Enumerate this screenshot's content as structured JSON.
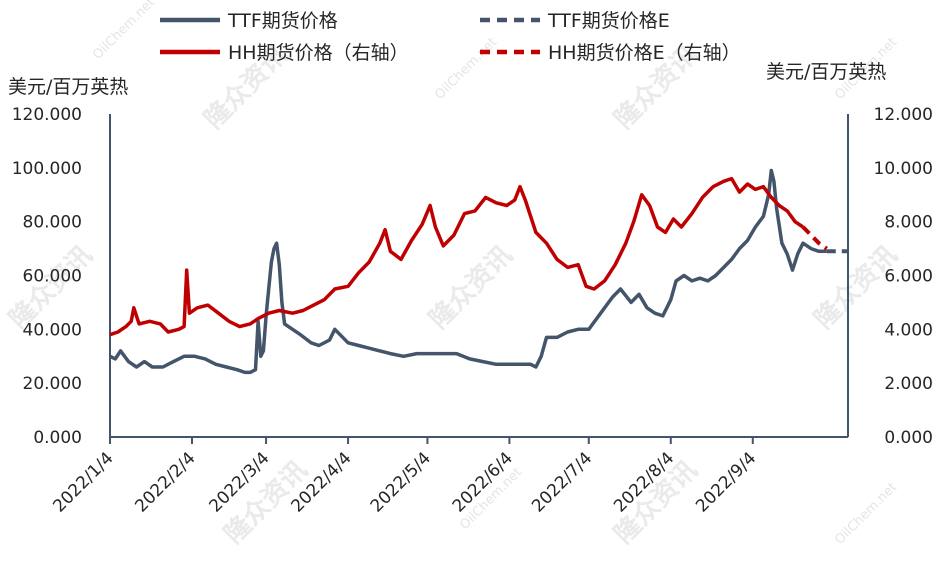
{
  "chart_data": {
    "type": "line",
    "legend": {
      "placement": "top",
      "entries": [
        {
          "label": "TTF期货价格",
          "color": "#44546a",
          "style": "solid"
        },
        {
          "label": "TTF期货价格E",
          "color": "#44546a",
          "style": "dashed"
        },
        {
          "label": "HH期货价格（右轴）",
          "color": "#c00000",
          "style": "solid"
        },
        {
          "label": "HH期货价格E（右轴）",
          "color": "#c00000",
          "style": "dashed"
        }
      ]
    },
    "left_axis": {
      "unit": "美元/百万英热",
      "ylim": [
        0,
        120
      ],
      "ticks": [
        "120.000",
        "100.000",
        "80.000",
        "60.000",
        "40.000",
        "20.000",
        "0.000"
      ]
    },
    "right_axis": {
      "unit": "美元/百万英热",
      "ylim": [
        0,
        12
      ],
      "ticks": [
        "12.000",
        "10.000",
        "8.000",
        "6.000",
        "4.000",
        "2.000",
        "0.000"
      ]
    },
    "x_ticks": [
      {
        "label": "2022/1/4",
        "date": "2022-01-04"
      },
      {
        "label": "2022/2/4",
        "date": "2022-02-04"
      },
      {
        "label": "2022/3/4",
        "date": "2022-03-04"
      },
      {
        "label": "2022/4/4",
        "date": "2022-04-04"
      },
      {
        "label": "2022/5/4",
        "date": "2022-05-04"
      },
      {
        "label": "2022/6/4",
        "date": "2022-06-04"
      },
      {
        "label": "2022/7/4",
        "date": "2022-07-04"
      },
      {
        "label": "2022/8/4",
        "date": "2022-08-04"
      },
      {
        "label": "2022/9/4",
        "date": "2022-09-04"
      }
    ],
    "grid": false,
    "series": [
      {
        "name": "TTF期货价格",
        "axis": "left",
        "color": "#44546a",
        "style": "solid",
        "points": [
          [
            "2022-01-04",
            30
          ],
          [
            "2022-01-06",
            29
          ],
          [
            "2022-01-08",
            32
          ],
          [
            "2022-01-11",
            28
          ],
          [
            "2022-01-14",
            26
          ],
          [
            "2022-01-17",
            28
          ],
          [
            "2022-01-20",
            26
          ],
          [
            "2022-01-24",
            26
          ],
          [
            "2022-01-28",
            28
          ],
          [
            "2022-02-01",
            30
          ],
          [
            "2022-02-05",
            30
          ],
          [
            "2022-02-09",
            29
          ],
          [
            "2022-02-13",
            27
          ],
          [
            "2022-02-17",
            26
          ],
          [
            "2022-02-21",
            25
          ],
          [
            "2022-02-24",
            24
          ],
          [
            "2022-02-26",
            24
          ],
          [
            "2022-02-28",
            25
          ],
          [
            "2022-03-01",
            43
          ],
          [
            "2022-03-02",
            30
          ],
          [
            "2022-03-03",
            32
          ],
          [
            "2022-03-04",
            45
          ],
          [
            "2022-03-05",
            55
          ],
          [
            "2022-03-06",
            65
          ],
          [
            "2022-03-07",
            70
          ],
          [
            "2022-03-08",
            72
          ],
          [
            "2022-03-09",
            64
          ],
          [
            "2022-03-10",
            50
          ],
          [
            "2022-03-11",
            42
          ],
          [
            "2022-03-14",
            40
          ],
          [
            "2022-03-17",
            38
          ],
          [
            "2022-03-21",
            35
          ],
          [
            "2022-03-24",
            34
          ],
          [
            "2022-03-28",
            36
          ],
          [
            "2022-03-30",
            40
          ],
          [
            "2022-04-01",
            38
          ],
          [
            "2022-04-04",
            35
          ],
          [
            "2022-04-08",
            34
          ],
          [
            "2022-04-12",
            33
          ],
          [
            "2022-04-16",
            32
          ],
          [
            "2022-04-20",
            31
          ],
          [
            "2022-04-25",
            30
          ],
          [
            "2022-04-30",
            31
          ],
          [
            "2022-05-05",
            31
          ],
          [
            "2022-05-10",
            31
          ],
          [
            "2022-05-15",
            31
          ],
          [
            "2022-05-20",
            29
          ],
          [
            "2022-05-25",
            28
          ],
          [
            "2022-05-30",
            27
          ],
          [
            "2022-06-04",
            27
          ],
          [
            "2022-06-08",
            27
          ],
          [
            "2022-06-12",
            27
          ],
          [
            "2022-06-14",
            26
          ],
          [
            "2022-06-16",
            30
          ],
          [
            "2022-06-18",
            37
          ],
          [
            "2022-06-22",
            37
          ],
          [
            "2022-06-26",
            39
          ],
          [
            "2022-06-30",
            40
          ],
          [
            "2022-07-04",
            40
          ],
          [
            "2022-07-07",
            44
          ],
          [
            "2022-07-10",
            48
          ],
          [
            "2022-07-13",
            52
          ],
          [
            "2022-07-16",
            55
          ],
          [
            "2022-07-20",
            50
          ],
          [
            "2022-07-23",
            53
          ],
          [
            "2022-07-26",
            48
          ],
          [
            "2022-07-29",
            46
          ],
          [
            "2022-08-01",
            45
          ],
          [
            "2022-08-04",
            51
          ],
          [
            "2022-08-06",
            58
          ],
          [
            "2022-08-09",
            60
          ],
          [
            "2022-08-12",
            58
          ],
          [
            "2022-08-15",
            59
          ],
          [
            "2022-08-18",
            58
          ],
          [
            "2022-08-21",
            60
          ],
          [
            "2022-08-24",
            63
          ],
          [
            "2022-08-27",
            66
          ],
          [
            "2022-08-30",
            70
          ],
          [
            "2022-09-02",
            73
          ],
          [
            "2022-09-05",
            78
          ],
          [
            "2022-09-08",
            82
          ],
          [
            "2022-09-10",
            90
          ],
          [
            "2022-09-11",
            99
          ],
          [
            "2022-09-12",
            95
          ],
          [
            "2022-09-13",
            85
          ],
          [
            "2022-09-15",
            72
          ],
          [
            "2022-09-17",
            68
          ],
          [
            "2022-09-19",
            62
          ],
          [
            "2022-09-21",
            68
          ],
          [
            "2022-09-23",
            72
          ],
          [
            "2022-09-26",
            70
          ],
          [
            "2022-09-29",
            69
          ],
          [
            "2022-10-02",
            69
          ]
        ]
      },
      {
        "name": "TTF期货价格E",
        "axis": "left",
        "color": "#44546a",
        "style": "dashed",
        "points": [
          [
            "2022-10-02",
            69
          ],
          [
            "2022-10-05",
            69
          ],
          [
            "2022-10-08",
            69
          ],
          [
            "2022-10-10",
            69
          ]
        ]
      },
      {
        "name": "HH期货价格（右轴）",
        "axis": "right",
        "color": "#c00000",
        "style": "solid",
        "points": [
          [
            "2022-01-04",
            3.8
          ],
          [
            "2022-01-07",
            3.9
          ],
          [
            "2022-01-10",
            4.1
          ],
          [
            "2022-01-12",
            4.3
          ],
          [
            "2022-01-13",
            4.8
          ],
          [
            "2022-01-15",
            4.2
          ],
          [
            "2022-01-19",
            4.3
          ],
          [
            "2022-01-23",
            4.2
          ],
          [
            "2022-01-26",
            3.9
          ],
          [
            "2022-01-30",
            4.0
          ],
          [
            "2022-02-01",
            4.1
          ],
          [
            "2022-02-02",
            6.2
          ],
          [
            "2022-02-03",
            4.6
          ],
          [
            "2022-02-06",
            4.8
          ],
          [
            "2022-02-10",
            4.9
          ],
          [
            "2022-02-14",
            4.6
          ],
          [
            "2022-02-18",
            4.3
          ],
          [
            "2022-02-22",
            4.1
          ],
          [
            "2022-02-26",
            4.2
          ],
          [
            "2022-03-01",
            4.4
          ],
          [
            "2022-03-05",
            4.6
          ],
          [
            "2022-03-09",
            4.7
          ],
          [
            "2022-03-14",
            4.6
          ],
          [
            "2022-03-18",
            4.7
          ],
          [
            "2022-03-22",
            4.9
          ],
          [
            "2022-03-26",
            5.1
          ],
          [
            "2022-03-30",
            5.5
          ],
          [
            "2022-04-04",
            5.6
          ],
          [
            "2022-04-08",
            6.1
          ],
          [
            "2022-04-12",
            6.5
          ],
          [
            "2022-04-16",
            7.2
          ],
          [
            "2022-04-18",
            7.7
          ],
          [
            "2022-04-20",
            6.9
          ],
          [
            "2022-04-24",
            6.6
          ],
          [
            "2022-04-28",
            7.3
          ],
          [
            "2022-05-02",
            7.9
          ],
          [
            "2022-05-05",
            8.6
          ],
          [
            "2022-05-07",
            7.8
          ],
          [
            "2022-05-10",
            7.1
          ],
          [
            "2022-05-14",
            7.5
          ],
          [
            "2022-05-18",
            8.3
          ],
          [
            "2022-05-22",
            8.4
          ],
          [
            "2022-05-26",
            8.9
          ],
          [
            "2022-05-30",
            8.7
          ],
          [
            "2022-06-03",
            8.6
          ],
          [
            "2022-06-06",
            8.8
          ],
          [
            "2022-06-08",
            9.3
          ],
          [
            "2022-06-10",
            8.8
          ],
          [
            "2022-06-14",
            7.6
          ],
          [
            "2022-06-18",
            7.2
          ],
          [
            "2022-06-22",
            6.6
          ],
          [
            "2022-06-26",
            6.3
          ],
          [
            "2022-06-30",
            6.4
          ],
          [
            "2022-07-03",
            5.6
          ],
          [
            "2022-07-06",
            5.5
          ],
          [
            "2022-07-10",
            5.8
          ],
          [
            "2022-07-14",
            6.4
          ],
          [
            "2022-07-18",
            7.2
          ],
          [
            "2022-07-21",
            8.0
          ],
          [
            "2022-07-24",
            9.0
          ],
          [
            "2022-07-27",
            8.6
          ],
          [
            "2022-07-30",
            7.8
          ],
          [
            "2022-08-02",
            7.6
          ],
          [
            "2022-08-05",
            8.1
          ],
          [
            "2022-08-08",
            7.8
          ],
          [
            "2022-08-12",
            8.3
          ],
          [
            "2022-08-16",
            8.9
          ],
          [
            "2022-08-20",
            9.3
          ],
          [
            "2022-08-24",
            9.5
          ],
          [
            "2022-08-27",
            9.6
          ],
          [
            "2022-08-30",
            9.1
          ],
          [
            "2022-09-02",
            9.4
          ],
          [
            "2022-09-05",
            9.2
          ],
          [
            "2022-09-08",
            9.3
          ],
          [
            "2022-09-11",
            8.9
          ],
          [
            "2022-09-14",
            8.6
          ],
          [
            "2022-09-17",
            8.4
          ],
          [
            "2022-09-20",
            8.0
          ],
          [
            "2022-09-23",
            7.8
          ]
        ]
      },
      {
        "name": "HH期货价格E（右轴）",
        "axis": "right",
        "color": "#c00000",
        "style": "dashed",
        "points": [
          [
            "2022-09-23",
            7.8
          ],
          [
            "2022-09-26",
            7.5
          ],
          [
            "2022-09-29",
            7.2
          ],
          [
            "2022-10-02",
            7.0
          ]
        ]
      }
    ]
  },
  "watermark": "隆众资讯",
  "watermark_url": "OilChem.net"
}
